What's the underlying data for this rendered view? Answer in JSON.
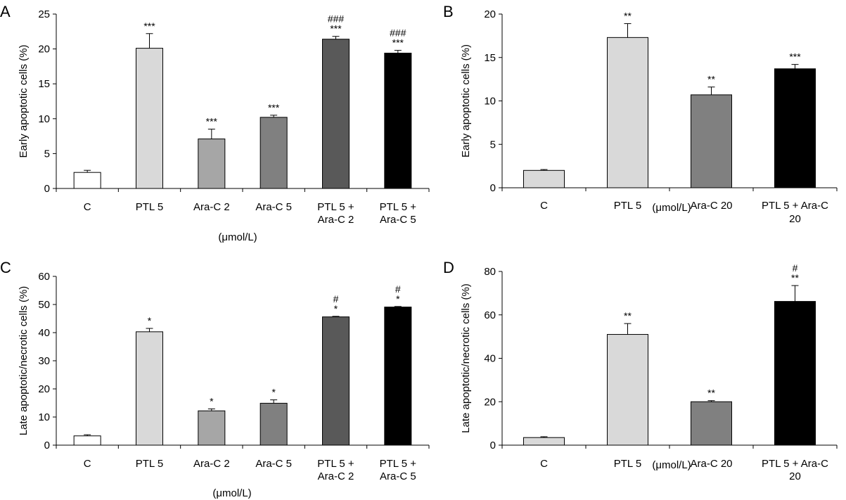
{
  "chart_data": [
    {
      "panel": "A",
      "type": "bar",
      "ylabel": "Early apoptotic cells (%)",
      "xlabel": "(μmol/L)",
      "ylim": [
        0,
        25
      ],
      "yticks": [
        0,
        5,
        10,
        15,
        20,
        25
      ],
      "categories": [
        [
          "C"
        ],
        [
          "PTL 5"
        ],
        [
          "Ara-C 2"
        ],
        [
          "Ara-C 5"
        ],
        [
          "PTL 5 +",
          "Ara-C 2"
        ],
        [
          "PTL 5 +",
          "Ara-C 5"
        ]
      ],
      "values": [
        2.3,
        20.1,
        7.1,
        10.2,
        21.4,
        19.4
      ],
      "errors": [
        0.3,
        2.1,
        1.4,
        0.3,
        0.4,
        0.4
      ],
      "fills": [
        "#ffffff",
        "#d9d9d9",
        "#a6a6a6",
        "#808080",
        "#595959",
        "#000000"
      ],
      "annotations": [
        [],
        [
          "***"
        ],
        [
          "***"
        ],
        [
          "***"
        ],
        [
          "###",
          "***"
        ],
        [
          "###",
          "***"
        ]
      ]
    },
    {
      "panel": "B",
      "type": "bar",
      "ylabel": "Early apoptotic cells (%)",
      "xlabel": "(μmol/L)",
      "ylim": [
        0,
        20
      ],
      "yticks": [
        0,
        5,
        10,
        15,
        20
      ],
      "categories": [
        [
          "C"
        ],
        [
          "PTL 5"
        ],
        [
          "Ara-C 20"
        ],
        [
          "PTL 5 + Ara-C",
          "20"
        ]
      ],
      "values": [
        2.0,
        17.3,
        10.7,
        13.7
      ],
      "errors": [
        0.1,
        1.6,
        0.9,
        0.5
      ],
      "fills": [
        "#d9d9d9",
        "#d9d9d9",
        "#808080",
        "#000000"
      ],
      "annotations": [
        [],
        [
          "**"
        ],
        [
          "**"
        ],
        [
          "***"
        ]
      ]
    },
    {
      "panel": "C",
      "type": "bar",
      "ylabel": "Late apoptotic/necrotic cells (%)",
      "xlabel": "(μmol/L)",
      "ylim": [
        0,
        60
      ],
      "yticks": [
        0,
        10,
        20,
        30,
        40,
        50,
        60
      ],
      "categories": [
        [
          "C"
        ],
        [
          "PTL 5"
        ],
        [
          "Ara-C 2"
        ],
        [
          "Ara-C 5"
        ],
        [
          "PTL 5 +",
          "Ara-C 2"
        ],
        [
          "PTL 5 +",
          "Ara-C 5"
        ]
      ],
      "values": [
        3.3,
        40.3,
        12.2,
        14.9,
        45.6,
        49.1
      ],
      "errors": [
        0.4,
        1.2,
        0.7,
        1.2,
        0.2,
        0.2
      ],
      "fills": [
        "#ffffff",
        "#d9d9d9",
        "#a6a6a6",
        "#808080",
        "#595959",
        "#000000"
      ],
      "annotations": [
        [],
        [
          "*"
        ],
        [
          "*"
        ],
        [
          "*"
        ],
        [
          "#",
          "*"
        ],
        [
          "#",
          "*"
        ]
      ]
    },
    {
      "panel": "D",
      "type": "bar",
      "ylabel": "Late apoptotic/necrotic cells (%)",
      "xlabel": "(μmol/L)",
      "ylim": [
        0,
        80
      ],
      "yticks": [
        0,
        20,
        40,
        60,
        80
      ],
      "categories": [
        [
          "C"
        ],
        [
          "PTL 5"
        ],
        [
          "Ara-C 20"
        ],
        [
          "PTL 5 + Ara-C",
          "20"
        ]
      ],
      "values": [
        3.5,
        51.0,
        20.0,
        66.2
      ],
      "errors": [
        0.4,
        5.0,
        0.5,
        7.3
      ],
      "fills": [
        "#d9d9d9",
        "#d9d9d9",
        "#808080",
        "#000000"
      ],
      "annotations": [
        [],
        [
          "**"
        ],
        [
          "**"
        ],
        [
          "#",
          "**"
        ]
      ]
    }
  ]
}
